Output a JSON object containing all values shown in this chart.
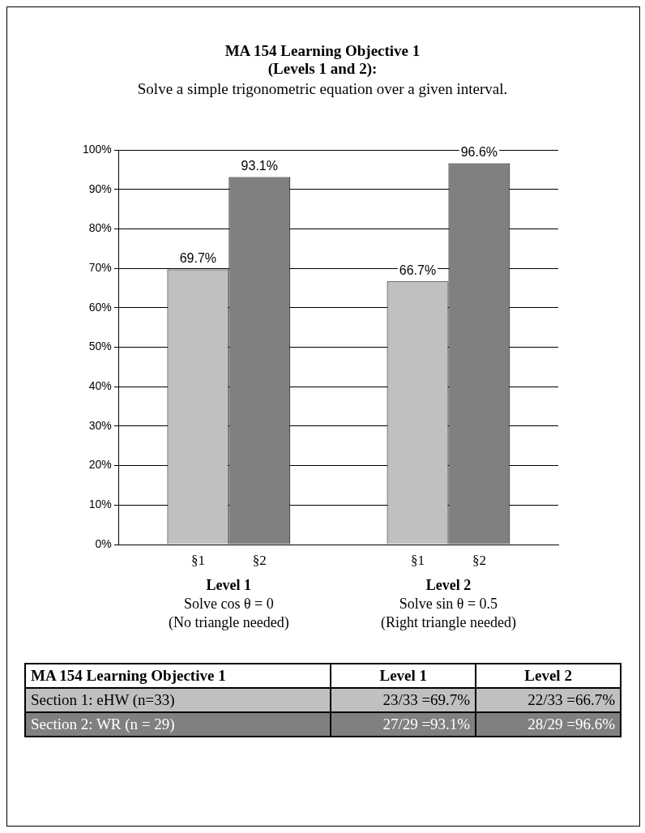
{
  "chart_data": {
    "type": "bar",
    "title": "MA 154 Learning Objective 1\n(Levels 1 and 2):",
    "subtitle": "Solve a simple trigonometric equation over a given interval.",
    "categories": [
      "Level 1\nSolve cos θ = 0\n(No triangle needed)",
      "Level 2\nSolve sin θ = 0.5\n(Right triangle needed)"
    ],
    "series": [
      {
        "name": "§1",
        "color": "#c0c0c0",
        "values": [
          69.7,
          66.7
        ],
        "value_labels": [
          "69.7%",
          "66.7%"
        ]
      },
      {
        "name": "§2",
        "color": "#808080",
        "values": [
          93.1,
          96.6
        ],
        "value_labels": [
          "93.1%",
          "96.6%"
        ]
      }
    ],
    "ylim": [
      0,
      100
    ],
    "yticks": [
      {
        "value": 0,
        "label": "0%"
      },
      {
        "value": 10,
        "label": "10%"
      },
      {
        "value": 20,
        "label": "20%"
      },
      {
        "value": 30,
        "label": "30%"
      },
      {
        "value": 40,
        "label": "40%"
      },
      {
        "value": 50,
        "label": "50%"
      },
      {
        "value": 60,
        "label": "60%"
      },
      {
        "value": 70,
        "label": "70%"
      },
      {
        "value": 80,
        "label": "80%"
      },
      {
        "value": 90,
        "label": "90%"
      },
      {
        "value": 100,
        "label": "100%"
      }
    ],
    "grid": "y",
    "legend": false,
    "annotations": [
      "MA 154 Learning Objective 1",
      "Level 1",
      "Level 2",
      "Section 1: eHW (n=33)",
      "23/33 =69.7%",
      "22/33 =66.7%",
      "Section 2: WR (n = 29)",
      "27/29 =93.1%",
      "28/29 =96.6%"
    ]
  }
}
